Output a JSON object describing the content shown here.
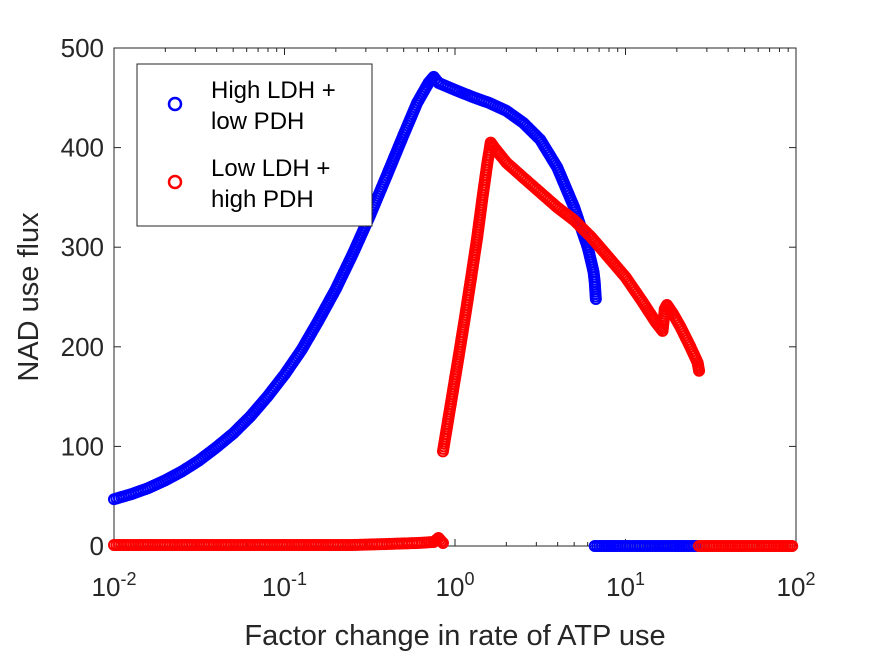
{
  "chart_data": {
    "type": "scatter",
    "xscale": "log",
    "xlim": [
      0.01,
      100
    ],
    "ylim": [
      0,
      500
    ],
    "xlabel": "Factor change in rate of ATP use",
    "ylabel": "NAD use flux",
    "xticks": [
      {
        "value": 0.01,
        "base": "10",
        "exp": "-2"
      },
      {
        "value": 0.1,
        "base": "10",
        "exp": "-1"
      },
      {
        "value": 1,
        "base": "10",
        "exp": "0"
      },
      {
        "value": 10,
        "base": "10",
        "exp": "1"
      },
      {
        "value": 100,
        "base": "10",
        "exp": "2"
      }
    ],
    "yticks": [
      {
        "value": 0,
        "label": "0"
      },
      {
        "value": 100,
        "label": "100"
      },
      {
        "value": 200,
        "label": "200"
      },
      {
        "value": 300,
        "label": "300"
      },
      {
        "value": 400,
        "label": "400"
      },
      {
        "value": 500,
        "label": "500"
      }
    ],
    "grid": false,
    "legend_position": "top-left",
    "series": [
      {
        "name_lines": [
          "High LDH +",
          "low PDH"
        ],
        "color": "#0000ff",
        "marker": "open-circle",
        "segments": [
          [
            [
              0.01,
              47
            ],
            [
              0.0126,
              52
            ],
            [
              0.0158,
              58
            ],
            [
              0.02,
              66
            ],
            [
              0.0251,
              75
            ],
            [
              0.0316,
              86
            ],
            [
              0.0398,
              99
            ],
            [
              0.05,
              113
            ],
            [
              0.063,
              130
            ],
            [
              0.0794,
              150
            ],
            [
              0.1,
              172
            ],
            [
              0.126,
              197
            ],
            [
              0.158,
              226
            ],
            [
              0.2,
              258
            ],
            [
              0.251,
              293
            ],
            [
              0.316,
              331
            ],
            [
              0.398,
              372
            ],
            [
              0.5,
              413
            ],
            [
              0.6,
              445
            ],
            [
              0.7,
              465
            ],
            [
              0.75,
              471
            ],
            [
              0.8,
              465
            ],
            [
              1.0,
              458
            ],
            [
              1.26,
              451
            ],
            [
              1.58,
              445
            ],
            [
              2.0,
              437
            ],
            [
              2.51,
              425
            ],
            [
              3.16,
              408
            ],
            [
              3.98,
              380
            ],
            [
              5.0,
              340
            ],
            [
              5.6,
              315
            ],
            [
              6.0,
              300
            ],
            [
              6.2,
              290
            ],
            [
              6.3,
              285
            ],
            [
              6.5,
              275
            ],
            [
              6.6,
              265
            ],
            [
              6.7,
              248
            ]
          ],
          [
            [
              6.6,
              0
            ],
            [
              7.5,
              0
            ],
            [
              9.0,
              0
            ],
            [
              11,
              0
            ],
            [
              13,
              0
            ],
            [
              16,
              0
            ],
            [
              19,
              0
            ],
            [
              22,
              0
            ],
            [
              26,
              0
            ]
          ]
        ]
      },
      {
        "name_lines": [
          "Low LDH +",
          "high PDH"
        ],
        "color": "#ff0000",
        "marker": "open-circle",
        "segments": [
          [
            [
              0.01,
              1
            ],
            [
              0.0158,
              1
            ],
            [
              0.0251,
              1
            ],
            [
              0.0398,
              1
            ],
            [
              0.063,
              1
            ],
            [
              0.1,
              1
            ],
            [
              0.158,
              1
            ],
            [
              0.251,
              1
            ],
            [
              0.398,
              2
            ],
            [
              0.6,
              3
            ],
            [
              0.75,
              4
            ],
            [
              0.8,
              8
            ],
            [
              0.85,
              3
            ]
          ],
          [
            [
              0.85,
              95
            ],
            [
              0.95,
              145
            ],
            [
              1.05,
              190
            ],
            [
              1.15,
              232
            ],
            [
              1.25,
              272
            ],
            [
              1.35,
              310
            ],
            [
              1.45,
              350
            ],
            [
              1.55,
              385
            ],
            [
              1.62,
              405
            ],
            [
              1.7,
              400
            ],
            [
              2.0,
              385
            ],
            [
              2.51,
              370
            ],
            [
              3.16,
              355
            ],
            [
              3.98,
              340
            ],
            [
              5.0,
              327
            ],
            [
              6.3,
              310
            ],
            [
              7.94,
              290
            ],
            [
              10,
              270
            ],
            [
              12.6,
              245
            ],
            [
              15.0,
              225
            ],
            [
              16.5,
              216
            ],
            [
              17.0,
              238
            ],
            [
              17.5,
              242
            ],
            [
              19,
              233
            ],
            [
              21,
              220
            ],
            [
              24,
              200
            ],
            [
              26.5,
              184
            ],
            [
              27,
              176
            ]
          ],
          [
            [
              27,
              0
            ],
            [
              32,
              0
            ],
            [
              40,
              0
            ],
            [
              50,
              0
            ],
            [
              63,
              0
            ],
            [
              79,
              0
            ],
            [
              95,
              0
            ]
          ]
        ]
      }
    ]
  }
}
